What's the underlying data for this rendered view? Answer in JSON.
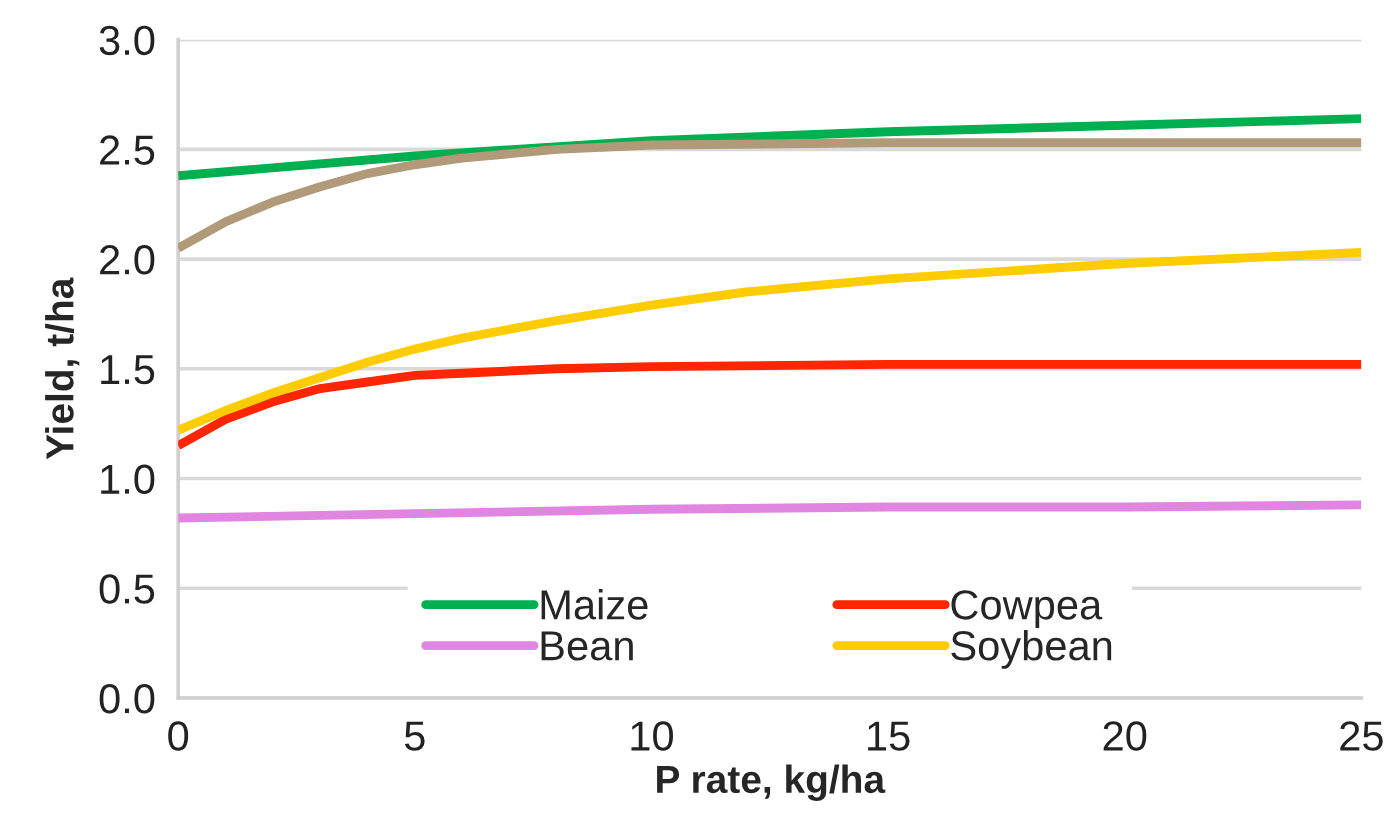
{
  "chart_data": {
    "type": "line",
    "xlabel": "P rate, kg/ha",
    "ylabel": "Yield, t/ha",
    "xlim": [
      0,
      25
    ],
    "xticks": [
      0,
      5,
      10,
      15,
      20,
      25
    ],
    "ylim": [
      0,
      3
    ],
    "yticks": [
      {
        "value": 0,
        "label": "0.0"
      },
      {
        "value": 0.5,
        "label": "0.5"
      },
      {
        "value": 1,
        "label": "1.0"
      },
      {
        "value": 1.5,
        "label": "1.5"
      },
      {
        "value": 2,
        "label": "2.0"
      },
      {
        "value": 2.5,
        "label": "2.5"
      },
      {
        "value": 3,
        "label": "3.0"
      }
    ],
    "grid": "y",
    "legend": "bottom",
    "marker": "none",
    "line_style": "solid",
    "series": [
      {
        "name": "Maize",
        "color": "#00b050",
        "x": [
          0,
          5,
          10,
          15,
          20,
          25
        ],
        "values": [
          2.38,
          2.47,
          2.54,
          2.58,
          2.61,
          2.64
        ]
      },
      {
        "name": "Bean",
        "color": "#e085e0",
        "x": [
          0,
          5,
          10,
          15,
          20,
          25
        ],
        "values": [
          0.82,
          0.84,
          0.86,
          0.87,
          0.87,
          0.88
        ]
      },
      {
        "name": "Cowpea",
        "color": "#ff2600",
        "x": [
          0,
          1,
          2,
          3,
          4,
          5,
          6,
          8,
          10,
          15,
          20,
          25
        ],
        "values": [
          1.15,
          1.27,
          1.35,
          1.41,
          1.44,
          1.47,
          1.48,
          1.5,
          1.51,
          1.52,
          1.52,
          1.52
        ]
      },
      {
        "name": "Soybean",
        "color": "#ffcc00",
        "x": [
          0,
          1,
          2,
          3,
          4,
          5,
          6,
          8,
          10,
          12,
          15,
          20,
          25
        ],
        "values": [
          1.22,
          1.31,
          1.39,
          1.46,
          1.53,
          1.59,
          1.64,
          1.72,
          1.79,
          1.85,
          1.91,
          1.98,
          2.03
        ]
      },
      {
        "color": "#b09a7a",
        "x": [
          0,
          1,
          2,
          3,
          4,
          5,
          6,
          8,
          10,
          15,
          20,
          25
        ],
        "values": [
          2.05,
          2.17,
          2.26,
          2.33,
          2.39,
          2.43,
          2.46,
          2.5,
          2.52,
          2.53,
          2.53,
          2.53
        ]
      }
    ]
  }
}
